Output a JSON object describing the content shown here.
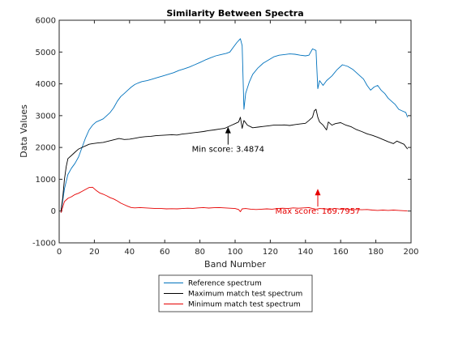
{
  "chart_data": {
    "type": "line",
    "title": "Similarity Between Spectra",
    "xlabel": "Band Number",
    "ylabel": "Data Values",
    "xlim": [
      0,
      200
    ],
    "ylim": [
      -1000,
      6000
    ],
    "xticks": [
      0,
      20,
      40,
      60,
      80,
      100,
      120,
      140,
      160,
      180,
      200
    ],
    "yticks": [
      -1000,
      0,
      1000,
      2000,
      3000,
      4000,
      5000,
      6000
    ],
    "grid": false,
    "legend_position": "bottom-center",
    "series": [
      {
        "name": "Reference spectrum",
        "color": "#0072bd",
        "points": [
          [
            1,
            -50
          ],
          [
            3,
            700
          ],
          [
            5,
            1150
          ],
          [
            7,
            1350
          ],
          [
            9,
            1500
          ],
          [
            11,
            1700
          ],
          [
            13,
            2000
          ],
          [
            15,
            2300
          ],
          [
            17,
            2550
          ],
          [
            19,
            2700
          ],
          [
            21,
            2800
          ],
          [
            23,
            2850
          ],
          [
            25,
            2900
          ],
          [
            27,
            3000
          ],
          [
            29,
            3100
          ],
          [
            31,
            3250
          ],
          [
            33,
            3450
          ],
          [
            35,
            3600
          ],
          [
            37,
            3700
          ],
          [
            39,
            3800
          ],
          [
            41,
            3900
          ],
          [
            43,
            3980
          ],
          [
            45,
            4030
          ],
          [
            47,
            4070
          ],
          [
            50,
            4100
          ],
          [
            53,
            4150
          ],
          [
            56,
            4200
          ],
          [
            59,
            4250
          ],
          [
            62,
            4300
          ],
          [
            65,
            4350
          ],
          [
            68,
            4420
          ],
          [
            71,
            4470
          ],
          [
            74,
            4530
          ],
          [
            77,
            4600
          ],
          [
            80,
            4670
          ],
          [
            83,
            4750
          ],
          [
            86,
            4820
          ],
          [
            89,
            4880
          ],
          [
            92,
            4920
          ],
          [
            95,
            4960
          ],
          [
            97,
            5000
          ],
          [
            99,
            5150
          ],
          [
            101,
            5300
          ],
          [
            103,
            5420
          ],
          [
            104,
            5200
          ],
          [
            105,
            3200
          ],
          [
            106,
            3700
          ],
          [
            108,
            4050
          ],
          [
            110,
            4300
          ],
          [
            113,
            4500
          ],
          [
            116,
            4650
          ],
          [
            119,
            4750
          ],
          [
            122,
            4850
          ],
          [
            125,
            4900
          ],
          [
            128,
            4920
          ],
          [
            131,
            4940
          ],
          [
            134,
            4930
          ],
          [
            137,
            4900
          ],
          [
            140,
            4880
          ],
          [
            142,
            4900
          ],
          [
            144,
            5100
          ],
          [
            146,
            5050
          ],
          [
            147,
            3850
          ],
          [
            148,
            4100
          ],
          [
            150,
            3950
          ],
          [
            152,
            4100
          ],
          [
            155,
            4250
          ],
          [
            158,
            4450
          ],
          [
            161,
            4600
          ],
          [
            164,
            4550
          ],
          [
            167,
            4450
          ],
          [
            170,
            4300
          ],
          [
            173,
            4150
          ],
          [
            175,
            3950
          ],
          [
            177,
            3800
          ],
          [
            179,
            3900
          ],
          [
            181,
            3950
          ],
          [
            183,
            3800
          ],
          [
            185,
            3700
          ],
          [
            187,
            3550
          ],
          [
            189,
            3450
          ],
          [
            191,
            3350
          ],
          [
            193,
            3200
          ],
          [
            195,
            3150
          ],
          [
            197,
            3100
          ],
          [
            198,
            2950
          ]
        ]
      },
      {
        "name": "Maximum match test spectrum",
        "color": "#000000",
        "points": [
          [
            1,
            0
          ],
          [
            2,
            400
          ],
          [
            3,
            1000
          ],
          [
            4,
            1400
          ],
          [
            5,
            1650
          ],
          [
            7,
            1750
          ],
          [
            9,
            1850
          ],
          [
            11,
            1950
          ],
          [
            13,
            2000
          ],
          [
            15,
            2050
          ],
          [
            17,
            2100
          ],
          [
            19,
            2120
          ],
          [
            22,
            2140
          ],
          [
            25,
            2160
          ],
          [
            28,
            2200
          ],
          [
            31,
            2240
          ],
          [
            34,
            2280
          ],
          [
            37,
            2250
          ],
          [
            40,
            2260
          ],
          [
            43,
            2290
          ],
          [
            46,
            2320
          ],
          [
            49,
            2340
          ],
          [
            52,
            2350
          ],
          [
            55,
            2370
          ],
          [
            58,
            2380
          ],
          [
            61,
            2390
          ],
          [
            64,
            2400
          ],
          [
            67,
            2390
          ],
          [
            70,
            2420
          ],
          [
            73,
            2440
          ],
          [
            76,
            2460
          ],
          [
            79,
            2480
          ],
          [
            82,
            2500
          ],
          [
            85,
            2530
          ],
          [
            88,
            2550
          ],
          [
            91,
            2580
          ],
          [
            94,
            2600
          ],
          [
            96,
            2650
          ],
          [
            98,
            2700
          ],
          [
            100,
            2750
          ],
          [
            102,
            2800
          ],
          [
            103,
            2950
          ],
          [
            104,
            2600
          ],
          [
            105,
            2850
          ],
          [
            107,
            2700
          ],
          [
            110,
            2620
          ],
          [
            113,
            2640
          ],
          [
            116,
            2660
          ],
          [
            119,
            2680
          ],
          [
            122,
            2700
          ],
          [
            125,
            2700
          ],
          [
            128,
            2710
          ],
          [
            131,
            2690
          ],
          [
            134,
            2720
          ],
          [
            137,
            2740
          ],
          [
            140,
            2760
          ],
          [
            142,
            2850
          ],
          [
            144,
            2950
          ],
          [
            145,
            3150
          ],
          [
            146,
            3200
          ],
          [
            147,
            2950
          ],
          [
            148,
            2800
          ],
          [
            150,
            2700
          ],
          [
            152,
            2550
          ],
          [
            153,
            2800
          ],
          [
            155,
            2700
          ],
          [
            157,
            2750
          ],
          [
            160,
            2780
          ],
          [
            163,
            2700
          ],
          [
            166,
            2650
          ],
          [
            169,
            2560
          ],
          [
            172,
            2500
          ],
          [
            175,
            2430
          ],
          [
            178,
            2380
          ],
          [
            181,
            2320
          ],
          [
            184,
            2250
          ],
          [
            187,
            2180
          ],
          [
            190,
            2120
          ],
          [
            192,
            2200
          ],
          [
            194,
            2150
          ],
          [
            196,
            2100
          ],
          [
            198,
            1950
          ]
        ]
      },
      {
        "name": "Minimum match test spectrum",
        "color": "#e60000",
        "points": [
          [
            1,
            -50
          ],
          [
            3,
            300
          ],
          [
            5,
            400
          ],
          [
            7,
            450
          ],
          [
            9,
            520
          ],
          [
            11,
            560
          ],
          [
            13,
            620
          ],
          [
            15,
            680
          ],
          [
            17,
            740
          ],
          [
            19,
            750
          ],
          [
            21,
            650
          ],
          [
            23,
            570
          ],
          [
            25,
            530
          ],
          [
            27,
            480
          ],
          [
            29,
            420
          ],
          [
            31,
            380
          ],
          [
            33,
            320
          ],
          [
            35,
            250
          ],
          [
            37,
            200
          ],
          [
            39,
            150
          ],
          [
            41,
            110
          ],
          [
            43,
            100
          ],
          [
            46,
            110
          ],
          [
            49,
            100
          ],
          [
            52,
            90
          ],
          [
            55,
            80
          ],
          [
            58,
            80
          ],
          [
            61,
            70
          ],
          [
            64,
            75
          ],
          [
            67,
            70
          ],
          [
            70,
            80
          ],
          [
            73,
            90
          ],
          [
            76,
            85
          ],
          [
            79,
            100
          ],
          [
            82,
            110
          ],
          [
            85,
            95
          ],
          [
            88,
            105
          ],
          [
            91,
            110
          ],
          [
            94,
            100
          ],
          [
            97,
            90
          ],
          [
            100,
            80
          ],
          [
            102,
            50
          ],
          [
            103,
            -20
          ],
          [
            104,
            70
          ],
          [
            106,
            80
          ],
          [
            109,
            60
          ],
          [
            112,
            50
          ],
          [
            115,
            60
          ],
          [
            118,
            70
          ],
          [
            121,
            60
          ],
          [
            124,
            80
          ],
          [
            127,
            90
          ],
          [
            130,
            80
          ],
          [
            133,
            100
          ],
          [
            136,
            90
          ],
          [
            139,
            100
          ],
          [
            142,
            110
          ],
          [
            144,
            80
          ],
          [
            146,
            60
          ],
          [
            148,
            80
          ],
          [
            151,
            70
          ],
          [
            154,
            60
          ],
          [
            157,
            80
          ],
          [
            160,
            60
          ],
          [
            163,
            70
          ],
          [
            166,
            40
          ],
          [
            169,
            50
          ],
          [
            172,
            40
          ],
          [
            175,
            50
          ],
          [
            178,
            30
          ],
          [
            181,
            20
          ],
          [
            184,
            30
          ],
          [
            187,
            20
          ],
          [
            190,
            30
          ],
          [
            193,
            20
          ],
          [
            196,
            10
          ],
          [
            198,
            0
          ]
        ]
      }
    ],
    "annotations": [
      {
        "text": "Min score: 3.4874",
        "x": 96,
        "y": 2650,
        "color": "#000000"
      },
      {
        "text": "Max score: 169.7957",
        "x": 147,
        "y": 700,
        "color": "#e60000"
      }
    ]
  }
}
